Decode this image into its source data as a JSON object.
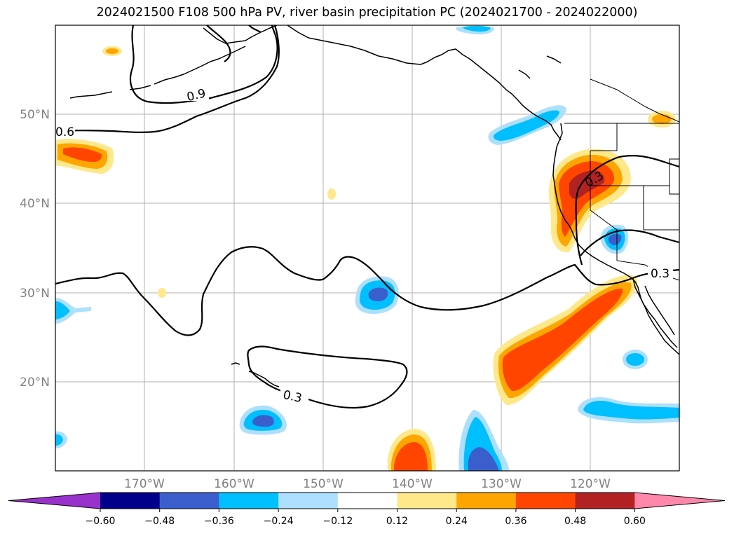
{
  "title": "2024021500 F108 500 hPa PV, river basin precipitation PC (2024021700 - 2024022000)",
  "latitude_labels": [
    "50°N",
    "40°N",
    "30°N",
    "20°N"
  ],
  "longitude_labels": [
    "170°W",
    "160°W",
    "150°W",
    "140°W",
    "130°W",
    "120°W"
  ],
  "contour_labels": [
    "0.9",
    "0.6",
    "0.3",
    "0.3",
    "0.3"
  ],
  "colorbar": {
    "ticks": [
      "−0.60",
      "−0.48",
      "−0.36",
      "−0.24",
      "−0.12",
      "0.12",
      "0.24",
      "0.36",
      "0.48",
      "0.60"
    ],
    "colors": [
      "#9932CC",
      "#00008B",
      "#3A5FCD",
      "#00BFFF",
      "#ADDFFF",
      "#FFFFFF",
      "#FFE88A",
      "#FFA500",
      "#FF4500",
      "#B22222",
      "#FF88AA"
    ]
  }
}
